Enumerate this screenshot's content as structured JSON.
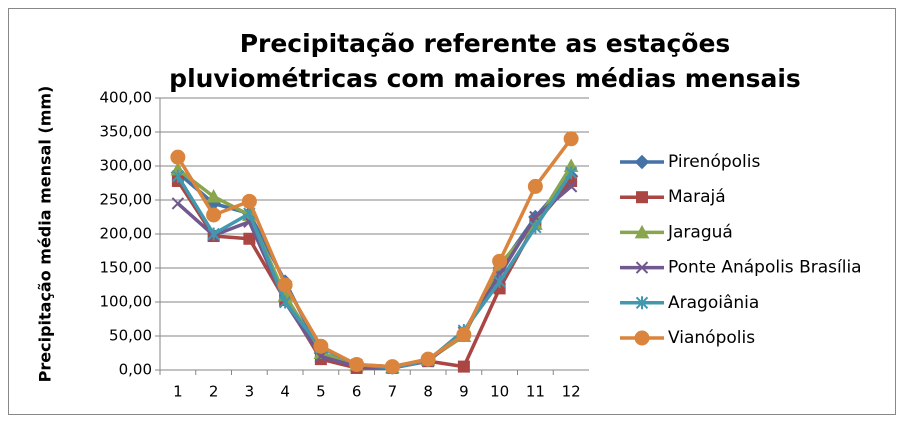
{
  "chart_data": {
    "type": "line",
    "title": [
      "Precipitação  referente as estações",
      "pluviométricas com maiores médias mensais"
    ],
    "y_label": "Precipitação média mensal (mm)",
    "categories": [
      1,
      2,
      3,
      4,
      5,
      6,
      7,
      8,
      9,
      10,
      11,
      12
    ],
    "ylim": [
      0,
      400
    ],
    "yticks": [
      {
        "value": 0,
        "label": "0,00"
      },
      {
        "value": 50,
        "label": "50,00"
      },
      {
        "value": 100,
        "label": "100,00"
      },
      {
        "value": 150,
        "label": "150,00"
      },
      {
        "value": 200,
        "label": "200,00"
      },
      {
        "value": 250,
        "label": "250,00"
      },
      {
        "value": 300,
        "label": "300,00"
      },
      {
        "value": 350,
        "label": "350,00"
      },
      {
        "value": 400,
        "label": "400,00"
      }
    ],
    "grid": true,
    "legend": "right",
    "series": [
      {
        "name": "Pirenópolis",
        "color": "#4572a7",
        "marker": "diamond",
        "values": [
          290,
          245,
          230,
          130,
          25,
          8,
          5,
          15,
          55,
          150,
          225,
          285
        ]
      },
      {
        "name": "Marajá",
        "color": "#aa4643",
        "marker": "square",
        "values": [
          278,
          197,
          193,
          103,
          16,
          3,
          3,
          13,
          5,
          120,
          215,
          278
        ]
      },
      {
        "name": "Jaraguá",
        "color": "#89a54e",
        "marker": "triangle",
        "values": [
          295,
          255,
          228,
          110,
          25,
          7,
          4,
          15,
          50,
          155,
          215,
          300
        ]
      },
      {
        "name": "Ponte Anápolis Brasília",
        "color": "#71588f",
        "marker": "x",
        "values": [
          245,
          198,
          218,
          100,
          20,
          5,
          3,
          13,
          55,
          140,
          225,
          270
        ]
      },
      {
        "name": "Aragoiânia",
        "color": "#4198af",
        "marker": "star",
        "values": [
          285,
          200,
          230,
          100,
          33,
          8,
          3,
          14,
          58,
          130,
          210,
          290
        ]
      },
      {
        "name": "Vianópolis",
        "color": "#db843d",
        "marker": "circle",
        "values": [
          313,
          228,
          248,
          125,
          35,
          8,
          5,
          16,
          52,
          160,
          270,
          340
        ]
      }
    ]
  }
}
